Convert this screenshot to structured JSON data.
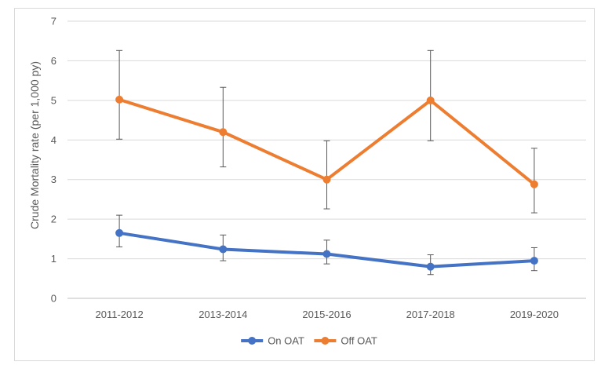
{
  "chart_data": {
    "type": "line",
    "title": "",
    "xlabel": "",
    "ylabel": "Crude Mortality rate (per 1,000 py)",
    "categories": [
      "2011-2012",
      "2013-2014",
      "2015-2016",
      "2017-2018",
      "2019-2020"
    ],
    "ylim": [
      0,
      7
    ],
    "yticks": [
      "0",
      "1",
      "2",
      "3",
      "4",
      "5",
      "6",
      "7"
    ],
    "grid": true,
    "legend": "bottom",
    "series": [
      {
        "name": "On OAT",
        "color": "#4472c4",
        "values": [
          1.65,
          1.24,
          1.12,
          0.8,
          0.95
        ],
        "err_low": [
          1.3,
          0.95,
          0.87,
          0.6,
          0.7
        ],
        "err_high": [
          2.1,
          1.6,
          1.47,
          1.1,
          1.28
        ]
      },
      {
        "name": "Off OAT",
        "color": "#ed7d31",
        "values": [
          5.02,
          4.2,
          3.0,
          5.0,
          2.88
        ],
        "err_low": [
          4.02,
          3.32,
          2.26,
          3.98,
          2.16
        ],
        "err_high": [
          6.26,
          5.33,
          3.98,
          6.26,
          3.79
        ]
      }
    ]
  }
}
